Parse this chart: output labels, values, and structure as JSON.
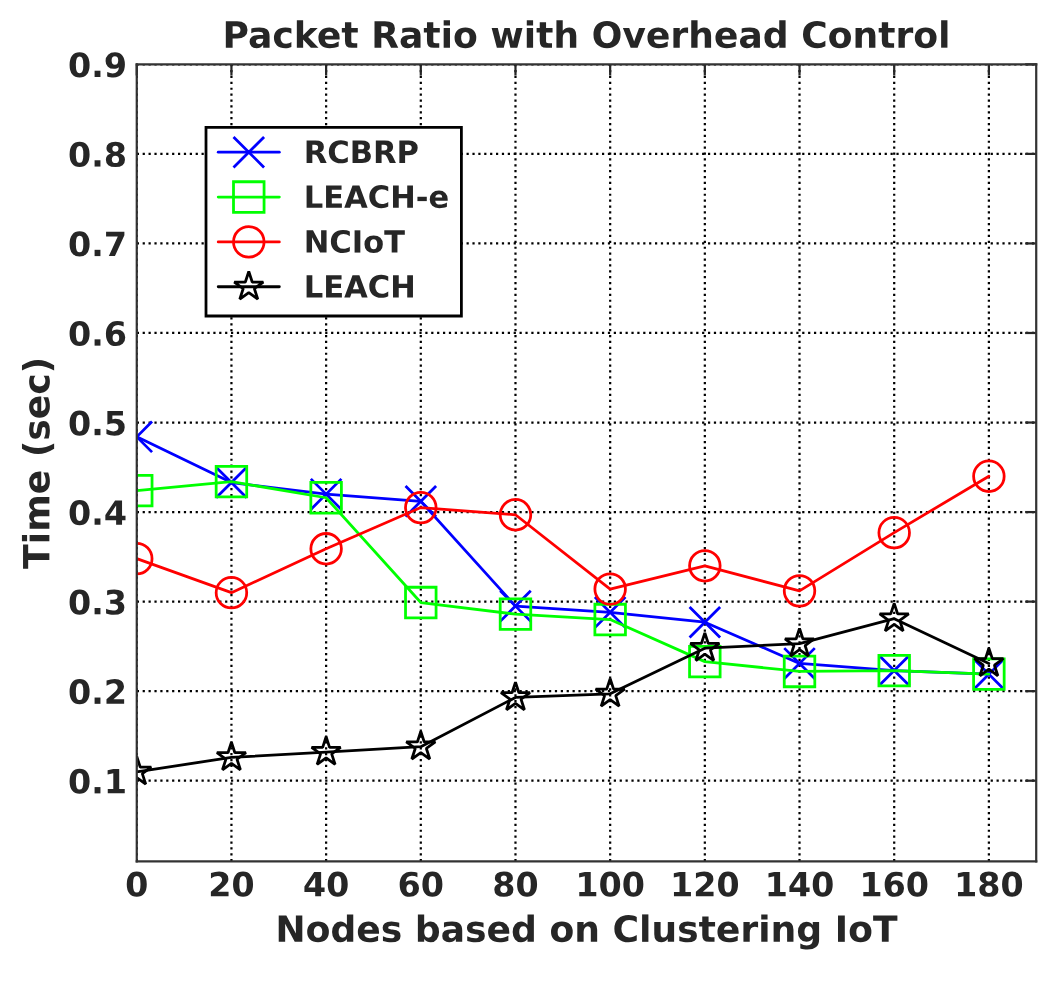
{
  "chart_data": {
    "type": "line",
    "title": "Packet Ratio with Overhead Control",
    "xlabel": "Nodes based on Clustering IoT",
    "ylabel": "Time (sec)",
    "x": [
      0,
      20,
      40,
      60,
      80,
      100,
      120,
      140,
      160,
      180
    ],
    "series": [
      {
        "name": "RCBRP",
        "color": "#0000ff",
        "marker": "cross",
        "values": [
          0.484,
          0.433,
          0.42,
          0.412,
          0.295,
          0.288,
          0.277,
          0.231,
          0.223,
          0.219
        ]
      },
      {
        "name": "LEACH-e",
        "color": "#00ff00",
        "marker": "square",
        "values": [
          0.424,
          0.434,
          0.416,
          0.299,
          0.286,
          0.28,
          0.233,
          0.222,
          0.223,
          0.219
        ]
      },
      {
        "name": "NCIoT",
        "color": "#ff0000",
        "marker": "circle",
        "values": [
          0.348,
          0.31,
          0.359,
          0.405,
          0.397,
          0.314,
          0.34,
          0.312,
          0.377,
          0.44
        ]
      },
      {
        "name": "LEACH",
        "color": "#000000",
        "marker": "star",
        "values": [
          0.11,
          0.126,
          0.132,
          0.138,
          0.193,
          0.197,
          0.248,
          0.253,
          0.281,
          0.231
        ]
      }
    ],
    "xlim": [
      0,
      190
    ],
    "xticks": [
      0,
      20,
      40,
      60,
      80,
      100,
      120,
      140,
      160,
      180
    ],
    "ylim": [
      0.01,
      0.9
    ],
    "yticks": [
      0.1,
      0.2,
      0.3,
      0.4,
      0.5,
      0.6,
      0.7,
      0.8,
      0.9
    ],
    "grid": true,
    "legend": "top left"
  }
}
